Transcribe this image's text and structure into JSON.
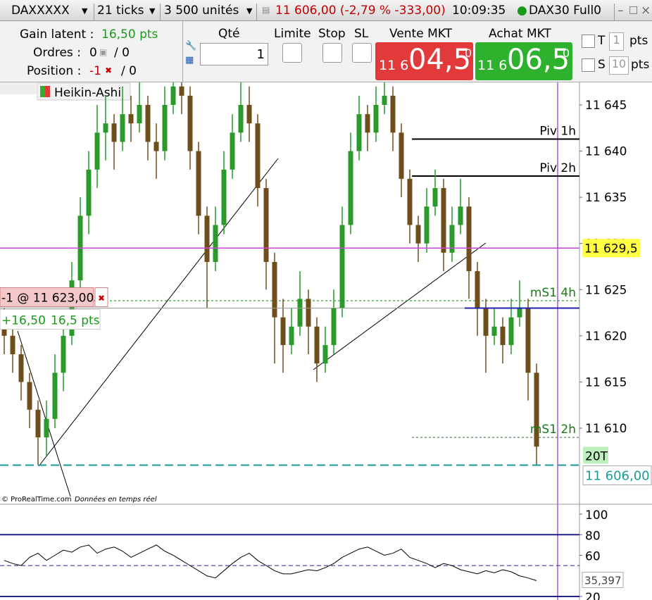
{
  "toolbar": {
    "instrument": "DAXXXXX",
    "period": "21 ticks",
    "units": "3 500 unités",
    "quote": "11 606,00 (-2,79 % -333,00)",
    "time": "10:09:35",
    "feed": "DAX30 Full0"
  },
  "account": {
    "gain_label": "Gain latent :",
    "gain_value": "16,50 pts",
    "orders_label": "Ordres :",
    "orders_value": "0",
    "orders_total": "/ 0",
    "position_label": "Position :",
    "position_value": "-1",
    "position_total": "/ 0"
  },
  "order_entry": {
    "qty_label": "Qté",
    "qty": "1",
    "limit": "Limite",
    "stop": "Stop",
    "sl": "SL",
    "sell": {
      "label": "Vente MKT",
      "prefix": "11 6",
      "big": "04,5",
      "sup": "0"
    },
    "buy": {
      "label": "Achat MKT",
      "prefix": "11 6",
      "big": "06,5",
      "sup": "0"
    },
    "t_label": "T",
    "t_value": "1",
    "t_unit": "pts",
    "s_label": "S",
    "s_value": "10",
    "s_unit": "pts"
  },
  "chart": {
    "indicator": "Heikin-Ashi",
    "copyright": "© ProRealTime.com",
    "realtime": "Données en temps réel",
    "ylim": [
      11601.84,
      11647.44
    ],
    "yticks": [
      {
        "value": 11645,
        "label": "11 645"
      },
      {
        "value": 11640,
        "label": "11 640"
      },
      {
        "value": 11635,
        "label": "11 635"
      },
      {
        "value": 11630,
        "label": "11 630"
      },
      {
        "value": 11625,
        "label": "11 625"
      },
      {
        "value": 11620,
        "label": "11 620"
      },
      {
        "value": 11615,
        "label": "11 615"
      },
      {
        "value": 11610,
        "label": "11 610"
      }
    ],
    "candles": [
      [
        11621,
        11623,
        11618,
        11620
      ],
      [
        11620,
        11622,
        11616,
        11618
      ],
      [
        11618,
        11619,
        11613,
        11615
      ],
      [
        11615,
        11616,
        11610,
        11612
      ],
      [
        11612,
        11613,
        11606,
        11609
      ],
      [
        11609,
        11613,
        11607,
        11611
      ],
      [
        11611,
        11618,
        11610,
        11616
      ],
      [
        11616,
        11622,
        11614,
        11620
      ],
      [
        11620,
        11628,
        11619,
        11626
      ],
      [
        11626,
        11635,
        11624,
        11633
      ],
      [
        11633,
        11640,
        11631,
        11638
      ],
      [
        11638,
        11645,
        11636,
        11642
      ],
      [
        11642,
        11646,
        11639,
        11643
      ],
      [
        11643,
        11644,
        11638,
        11641
      ],
      [
        11641,
        11647,
        11640,
        11644
      ],
      [
        11644,
        11646,
        11641,
        11643
      ],
      [
        11643,
        11648,
        11642,
        11645
      ],
      [
        11645,
        11646,
        11639,
        11641
      ],
      [
        11641,
        11643,
        11637,
        11640
      ],
      [
        11640,
        11647,
        11639,
        11645
      ],
      [
        11645,
        11649,
        11644,
        11647
      ],
      [
        11647,
        11649,
        11644,
        11646
      ],
      [
        11646,
        11647,
        11638,
        11640
      ],
      [
        11640,
        11641,
        11631,
        11633
      ],
      [
        11633,
        11634,
        11623,
        11628
      ],
      [
        11628,
        11634,
        11627,
        11632
      ],
      [
        11632,
        11640,
        11631,
        11638
      ],
      [
        11638,
        11644,
        11637,
        11642
      ],
      [
        11642,
        11648,
        11641,
        11645
      ],
      [
        11645,
        11647,
        11641,
        11643
      ],
      [
        11643,
        11644,
        11634,
        11636
      ],
      [
        11636,
        11637,
        11625,
        11628
      ],
      [
        11628,
        11629,
        11617,
        11622
      ],
      [
        11622,
        11624,
        11616,
        11619
      ],
      [
        11619,
        11623,
        11618,
        11621
      ],
      [
        11621,
        11627,
        11620,
        11624
      ],
      [
        11624,
        11625,
        11618,
        11621
      ],
      [
        11621,
        11622,
        11615,
        11617
      ],
      [
        11617,
        11621,
        11616,
        11619
      ],
      [
        11619,
        11625,
        11618,
        11623
      ],
      [
        11623,
        11634,
        11622,
        11632
      ],
      [
        11632,
        11642,
        11631,
        11640
      ],
      [
        11640,
        11646,
        11639,
        11644
      ],
      [
        11644,
        11645,
        11640,
        11642
      ],
      [
        11642,
        11647,
        11641,
        11645
      ],
      [
        11645,
        11648,
        11644,
        11646
      ],
      [
        11646,
        11647,
        11640,
        11642
      ],
      [
        11642,
        11643,
        11635,
        11637
      ],
      [
        11637,
        11638,
        11630,
        11632
      ],
      [
        11632,
        11633,
        11628,
        11630
      ],
      [
        11630,
        11636,
        11629,
        11634
      ],
      [
        11634,
        11638,
        11633,
        11636
      ],
      [
        11636,
        11637,
        11627,
        11629
      ],
      [
        11629,
        11634,
        11628,
        11632
      ],
      [
        11632,
        11637,
        11631,
        11634
      ],
      [
        11634,
        11635,
        11624,
        11627
      ],
      [
        11627,
        11628,
        11620,
        11623
      ],
      [
        11623,
        11624,
        11616,
        11620
      ],
      [
        11620,
        11623,
        11619,
        11621
      ],
      [
        11621,
        11622,
        11617,
        11619
      ],
      [
        11619,
        11624,
        11618,
        11622
      ],
      [
        11622,
        11626,
        11621,
        11623
      ],
      [
        11623,
        11624,
        11613,
        11616
      ],
      [
        11616,
        11617,
        11606,
        11608
      ]
    ],
    "levels": [
      {
        "label": "Piv 1h",
        "value": 11641.3,
        "color": "#000000"
      },
      {
        "label": "Piv 2h",
        "value": 11637.3,
        "color": "#000000"
      },
      {
        "label": "mS1 4h",
        "value": 11623.8,
        "color": "#1a7a1a"
      },
      {
        "label": "mS1 2h",
        "value": 11609,
        "color": "#1a7a1a"
      }
    ],
    "marker": {
      "value": 11629.5,
      "label": "11 629,5",
      "color": "#cc44dd"
    },
    "last": {
      "value": 11606,
      "label": "11 606,00",
      "ticks": "20T",
      "color": "#1a9a9a"
    },
    "order": {
      "price": 11623,
      "text": "-1 @ 11 623,00",
      "pnl": "+16,50",
      "pnl_pts": "16,5 pts"
    }
  },
  "rsi": {
    "ylim": [
      20,
      100
    ],
    "yticks": [
      100,
      80,
      60,
      20
    ],
    "bands": [
      80,
      50,
      20
    ],
    "values": [
      55,
      52,
      50,
      58,
      62,
      55,
      60,
      65,
      63,
      68,
      70,
      62,
      66,
      68,
      64,
      58,
      62,
      66,
      70,
      64,
      60,
      55,
      50,
      45,
      40,
      38,
      45,
      52,
      58,
      62,
      55,
      50,
      45,
      42,
      42,
      44,
      46,
      45,
      48,
      52,
      58,
      62,
      66,
      68,
      64,
      60,
      62,
      66,
      58,
      55,
      52,
      48,
      52,
      50,
      46,
      44,
      42,
      45,
      43,
      46,
      44,
      40,
      38,
      35.397
    ],
    "current": {
      "value": 35.397,
      "label": "35,397"
    }
  }
}
